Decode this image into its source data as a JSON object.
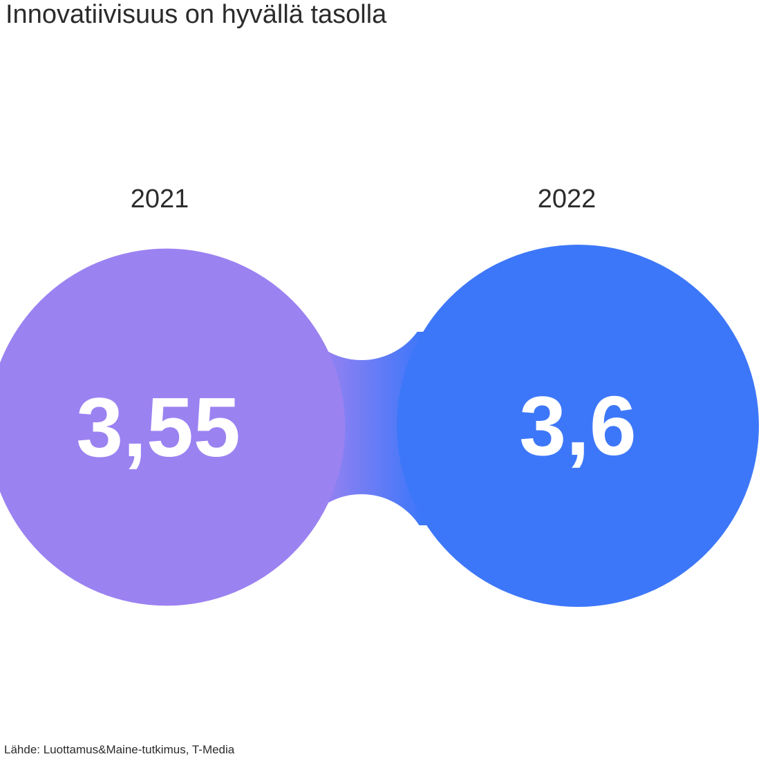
{
  "chart_data": {
    "type": "bubble",
    "title": "Innovatiivisuus on hyvällä tasolla",
    "categories": [
      "2021",
      "2022"
    ],
    "values": [
      3.55,
      3.6
    ],
    "value_labels": [
      "3,55",
      "3,6"
    ],
    "colors": [
      "#9b82f1",
      "#3d77f9"
    ],
    "source": "Lähde: Luottamus&Maine-tutkimus, T-Media"
  }
}
